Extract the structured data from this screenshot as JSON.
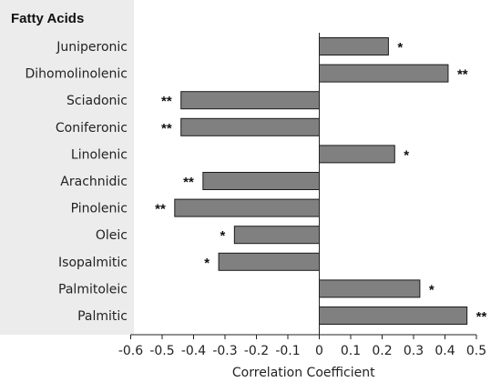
{
  "chart_data": {
    "type": "bar",
    "orientation": "horizontal",
    "category_header": "Fatty Acids",
    "categories": [
      "Juniperonic",
      "Dihomolinolenic",
      "Sciadonic",
      "Coniferonic",
      "Linolenic",
      "Arachnidic",
      "Pinolenic",
      "Oleic",
      "Isopalmitic",
      "Palmitoleic",
      "Palmitic"
    ],
    "values": [
      0.22,
      0.41,
      -0.44,
      -0.44,
      0.24,
      -0.37,
      -0.46,
      -0.27,
      -0.32,
      0.32,
      0.47
    ],
    "significance": [
      "*",
      "**",
      "**",
      "**",
      "*",
      "**",
      "**",
      "*",
      "*",
      "*",
      "**"
    ],
    "xlabel": "Correlation Coefficient",
    "xlim": [
      -0.6,
      0.5
    ],
    "xticks": [
      -0.6,
      -0.5,
      -0.4,
      -0.3,
      -0.2,
      -0.1,
      0,
      0.1,
      0.2,
      0.3,
      0.4,
      0.5
    ],
    "bar_color": "#808080",
    "bar_edge_color": "#1a1a1a",
    "header_band_color": "#ececec",
    "grid": false
  }
}
